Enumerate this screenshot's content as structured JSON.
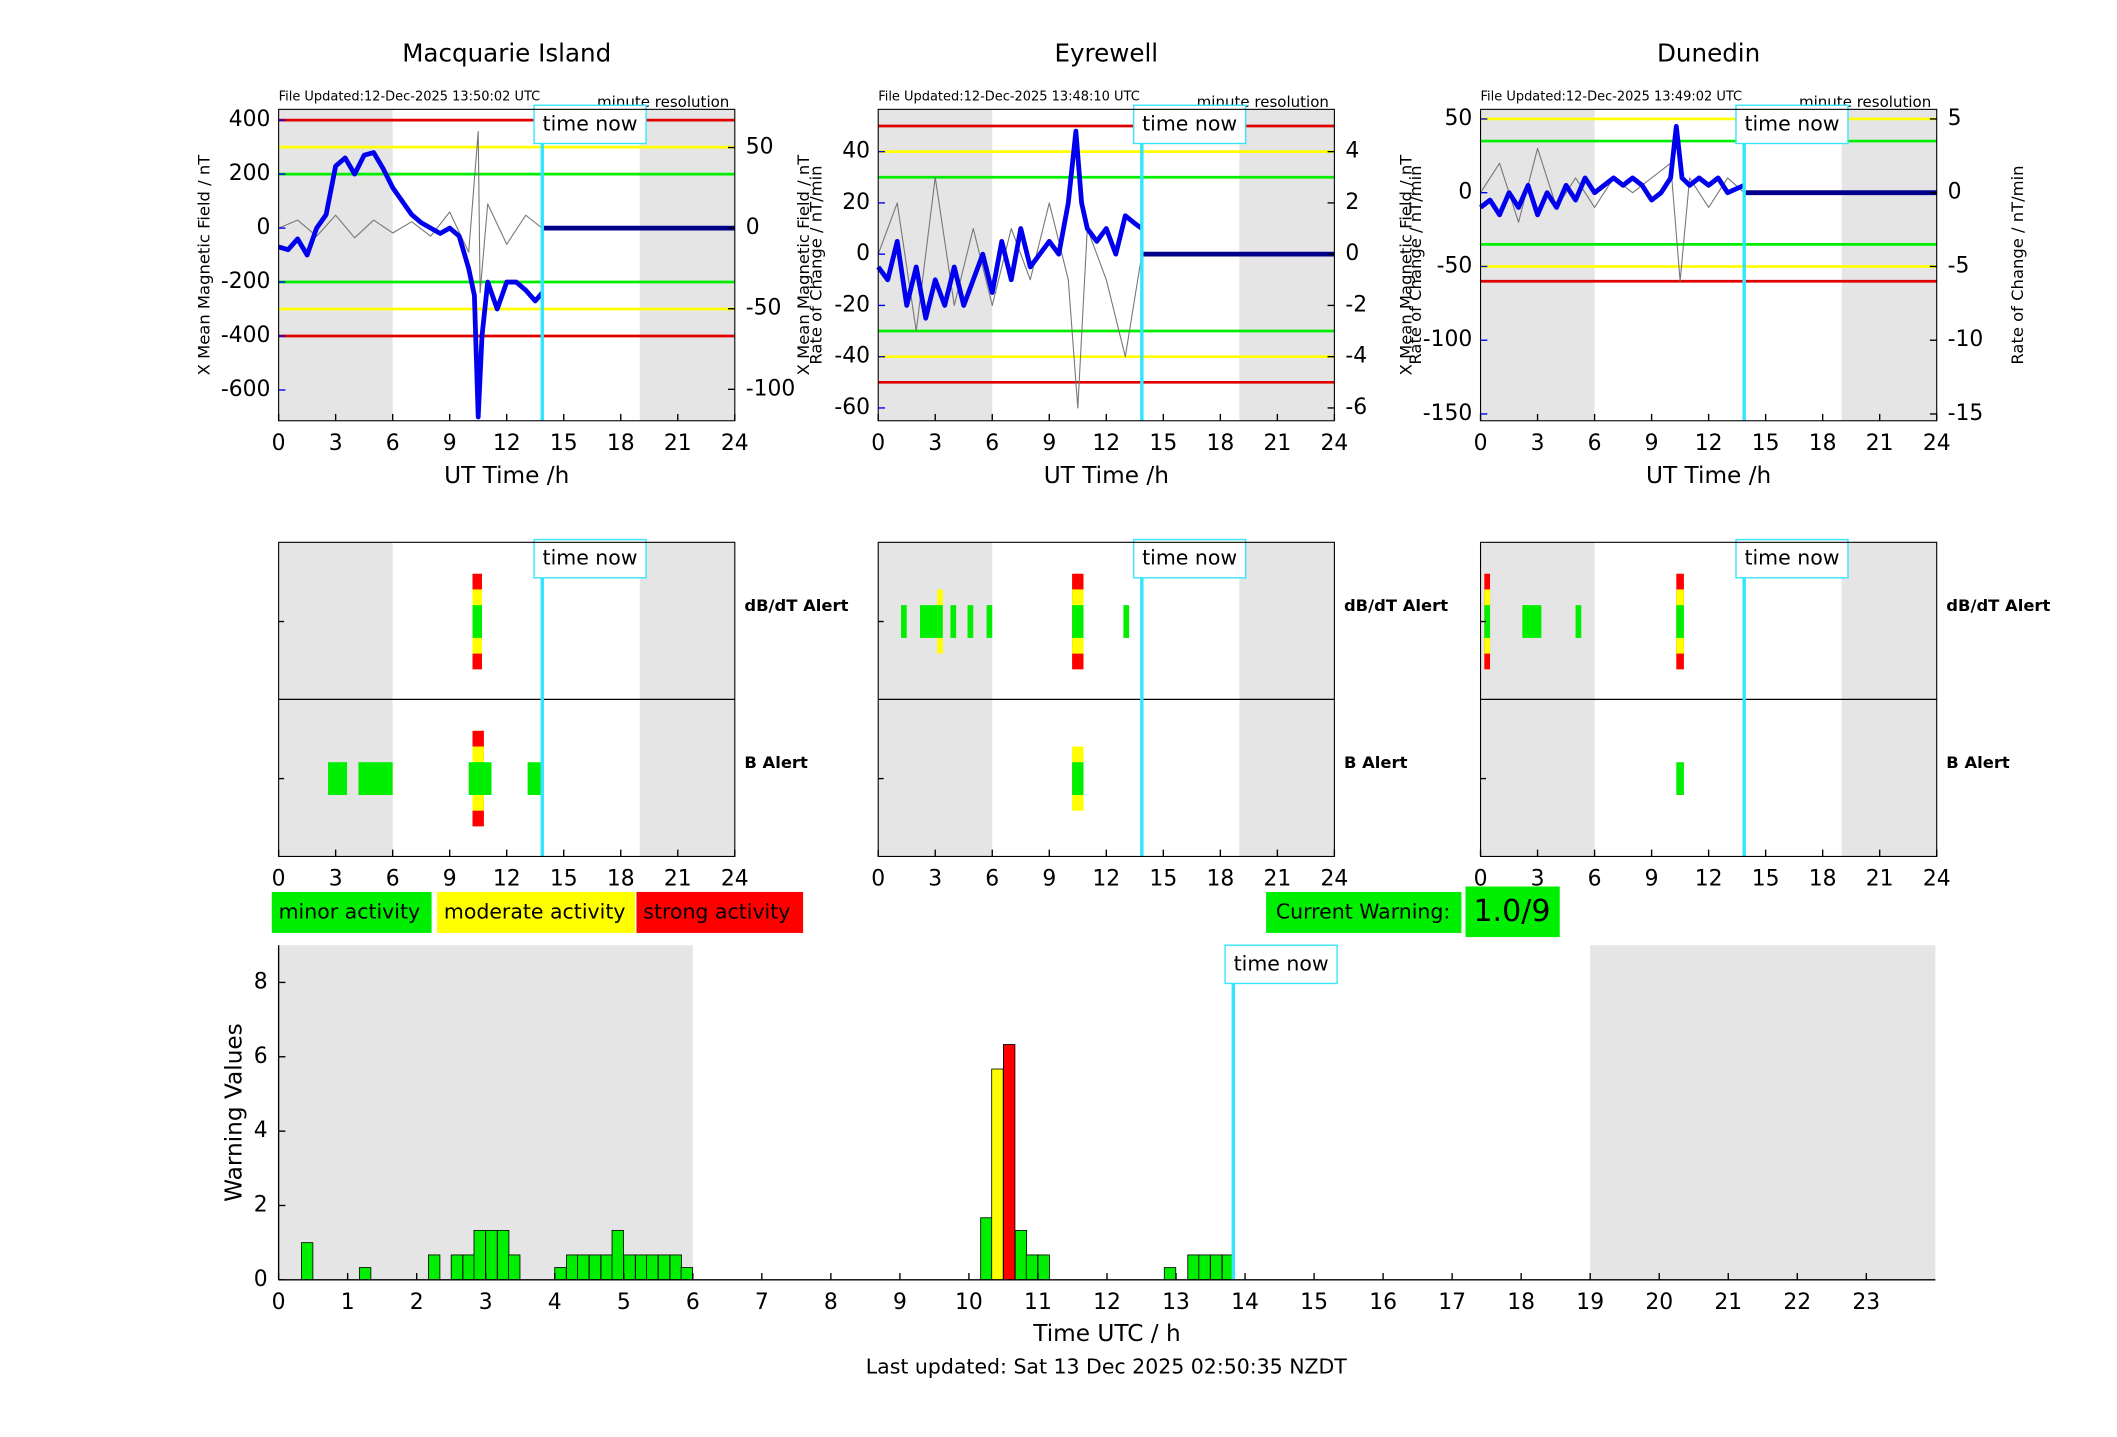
{
  "chart_data": [
    {
      "type": "line",
      "title": "Macquarie Island",
      "file_updated": "File Updated:12-Dec-2025 13:50:02 UTC",
      "resolution": "minute resolution",
      "xlabel": "UT Time /h",
      "ylabel": "X Mean Magnetic Field / nT",
      "y2label": "Rate of Change / nT/min",
      "xlim": [
        0,
        24
      ],
      "xticks": [
        0,
        3,
        6,
        9,
        12,
        15,
        18,
        21,
        24
      ],
      "ylim": [
        -714,
        440
      ],
      "yticks": [
        400,
        200,
        0,
        -200,
        -400,
        -600
      ],
      "y2lim": [
        -119.5,
        73.7
      ],
      "y2ticks": [
        50,
        0,
        -50,
        -100
      ],
      "shading": [
        [
          0,
          6
        ],
        [
          19,
          24
        ]
      ],
      "thresholds": [
        {
          "value": 400,
          "color": "#e00000"
        },
        {
          "value": 300,
          "color": "#ffff00"
        },
        {
          "value": 200,
          "color": "#00ee00"
        },
        {
          "value": -200,
          "color": "#00ee00"
        },
        {
          "value": -300,
          "color": "#ffff00"
        },
        {
          "value": -400,
          "color": "#e00000"
        }
      ],
      "time_now": {
        "x": 13.87,
        "label": "time now"
      },
      "series": [
        {
          "color": "#777777",
          "axis": "y2",
          "x": [
            0,
            1,
            2,
            3,
            4,
            5,
            6,
            7,
            8,
            9,
            10,
            10.5,
            10.6,
            11,
            12,
            13,
            13.87
          ],
          "values": [
            0,
            5,
            -5,
            8,
            -6,
            5,
            -3,
            4,
            -5,
            10,
            -15,
            60,
            -40,
            15,
            -10,
            8,
            0
          ]
        },
        {
          "color": "#0000ee",
          "axis": "y",
          "x": [
            0,
            0.5,
            1,
            1.5,
            2,
            2.5,
            3,
            3.5,
            4,
            4.5,
            5,
            5.5,
            6,
            6.5,
            7,
            7.5,
            8,
            8.5,
            9,
            9.5,
            10,
            10.3,
            10.5,
            10.7,
            11,
            11.5,
            12,
            12.5,
            13,
            13.5,
            13.87
          ],
          "values": [
            -70,
            -80,
            -40,
            -100,
            0,
            50,
            230,
            260,
            200,
            270,
            280,
            220,
            150,
            100,
            50,
            20,
            0,
            -20,
            0,
            -30,
            -150,
            -250,
            -700,
            -400,
            -200,
            -300,
            -200,
            -200,
            -230,
            -270,
            -240
          ]
        },
        {
          "color": "#00008b",
          "axis": "y",
          "x": [
            13.87,
            24
          ],
          "values": [
            0,
            0
          ]
        }
      ]
    },
    {
      "type": "line",
      "title": "Eyrewell",
      "file_updated": "File Updated:12-Dec-2025 13:48:10 UTC",
      "resolution": "minute resolution",
      "xlabel": "UT Time /h",
      "ylabel": "X Mean Magnetic Field / nT",
      "y2label": "Rate of Change / nT/min",
      "xlim": [
        0,
        24
      ],
      "xticks": [
        0,
        3,
        6,
        9,
        12,
        15,
        18,
        21,
        24
      ],
      "ylim": [
        -65,
        56.5
      ],
      "yticks": [
        40,
        20,
        0,
        -20,
        -40,
        -60
      ],
      "y2lim": [
        -6.5,
        5.65
      ],
      "y2ticks": [
        4,
        2,
        0,
        -2,
        -4,
        -6
      ],
      "shading": [
        [
          0,
          6
        ],
        [
          19,
          24
        ]
      ],
      "thresholds": [
        {
          "value": 50,
          "color": "#e00000"
        },
        {
          "value": 40,
          "color": "#ffff00"
        },
        {
          "value": 30,
          "color": "#00ee00"
        },
        {
          "value": -30,
          "color": "#00ee00"
        },
        {
          "value": -40,
          "color": "#ffff00"
        },
        {
          "value": -50,
          "color": "#e00000"
        }
      ],
      "time_now": {
        "x": 13.87,
        "label": "time now"
      },
      "series": [
        {
          "color": "#777777",
          "axis": "y2",
          "x": [
            0,
            1,
            2,
            3,
            4,
            5,
            6,
            7,
            8,
            9,
            10,
            10.5,
            11,
            12,
            13,
            13.87
          ],
          "values": [
            0,
            2,
            -3,
            3,
            -2,
            1,
            -2,
            1,
            -1,
            2,
            -1,
            -6,
            1,
            -1,
            -4,
            0
          ]
        },
        {
          "color": "#0000ee",
          "axis": "y",
          "x": [
            0,
            0.5,
            1,
            1.5,
            2,
            2.5,
            3,
            3.5,
            4,
            4.5,
            5,
            5.5,
            6,
            6.5,
            7,
            7.5,
            8,
            8.5,
            9,
            9.5,
            10,
            10.4,
            10.7,
            11,
            11.5,
            12,
            12.5,
            13,
            13.5,
            13.87
          ],
          "values": [
            -5,
            -10,
            5,
            -20,
            -5,
            -25,
            -10,
            -20,
            -5,
            -20,
            -10,
            0,
            -15,
            5,
            -10,
            10,
            -5,
            0,
            5,
            0,
            20,
            48,
            20,
            10,
            5,
            10,
            0,
            15,
            12,
            10
          ]
        },
        {
          "color": "#00008b",
          "axis": "y",
          "x": [
            13.87,
            24
          ],
          "values": [
            0,
            0
          ]
        }
      ]
    },
    {
      "type": "line",
      "title": "Dunedin",
      "file_updated": "File Updated:12-Dec-2025 13:49:02 UTC",
      "resolution": "minute resolution",
      "xlabel": "UT Time /h",
      "ylabel": "X Mean Magnetic Field / nT",
      "y2label": "Rate of Change / nT/min",
      "xlim": [
        0,
        24
      ],
      "xticks": [
        0,
        3,
        6,
        9,
        12,
        15,
        18,
        21,
        24
      ],
      "ylim": [
        -154.6,
        56.5
      ],
      "yticks": [
        50,
        0,
        -50,
        -100,
        -150
      ],
      "y2lim": [
        -15.46,
        5.65
      ],
      "y2ticks": [
        5,
        0,
        -5,
        -10,
        -15
      ],
      "shading": [
        [
          0,
          6
        ],
        [
          19,
          24
        ]
      ],
      "thresholds": [
        {
          "value": 50,
          "color": "#ffff00"
        },
        {
          "value": 35,
          "color": "#00ee00"
        },
        {
          "value": -35,
          "color": "#00ee00"
        },
        {
          "value": -50,
          "color": "#ffff00"
        },
        {
          "value": -60,
          "color": "#e00000"
        }
      ],
      "time_now": {
        "x": 13.87,
        "label": "time now"
      },
      "series": [
        {
          "color": "#777777",
          "axis": "y2",
          "x": [
            0,
            1,
            2,
            3,
            4,
            5,
            6,
            7,
            8,
            9,
            10,
            10.5,
            11,
            12,
            13,
            13.87
          ],
          "values": [
            0,
            2,
            -2,
            3,
            -1,
            1,
            -1,
            1,
            0,
            1,
            2,
            -6,
            1,
            -1,
            1,
            0
          ]
        },
        {
          "color": "#0000ee",
          "axis": "y",
          "x": [
            0,
            0.5,
            1,
            1.5,
            2,
            2.5,
            3,
            3.5,
            4,
            4.5,
            5,
            5.5,
            6,
            6.5,
            7,
            7.5,
            8,
            8.5,
            9,
            9.5,
            10,
            10.3,
            10.6,
            11,
            11.5,
            12,
            12.5,
            13,
            13.87
          ],
          "values": [
            -10,
            -5,
            -15,
            0,
            -10,
            5,
            -15,
            0,
            -10,
            5,
            -5,
            10,
            0,
            5,
            10,
            5,
            10,
            5,
            -5,
            0,
            10,
            45,
            10,
            5,
            10,
            5,
            10,
            0,
            5
          ]
        },
        {
          "color": "#00008b",
          "axis": "y",
          "x": [
            13.87,
            24
          ],
          "values": [
            0,
            0
          ]
        }
      ]
    },
    {
      "type": "alert",
      "xlim": [
        0,
        24
      ],
      "xticks": [
        0,
        3,
        6,
        9,
        12,
        15,
        18,
        21,
        24
      ],
      "shading": [
        [
          0,
          6
        ],
        [
          19,
          24
        ]
      ],
      "time_now": {
        "x": 13.87,
        "label": "time now"
      },
      "level_colors": [
        "#00ee00",
        "#ffff00",
        "#ff0000"
      ],
      "rows": [
        {
          "label": "dB/dT Alert",
          "color": "#000000",
          "blocks": [
            [
              10.2,
              10.7,
              3
            ]
          ]
        },
        {
          "label": "B Alert",
          "color": "#0000ff",
          "blocks": [
            [
              2.6,
              3.6,
              1
            ],
            [
              4.2,
              6,
              1
            ],
            [
              10.2,
              10.8,
              3
            ],
            [
              10,
              11.2,
              1
            ],
            [
              13.1,
              13.8,
              1
            ]
          ]
        }
      ]
    },
    {
      "type": "alert",
      "xlim": [
        0,
        24
      ],
      "xticks": [
        0,
        3,
        6,
        9,
        12,
        15,
        18,
        21,
        24
      ],
      "shading": [
        [
          0,
          6
        ],
        [
          19,
          24
        ]
      ],
      "time_now": {
        "x": 13.87,
        "label": "time now"
      },
      "level_colors": [
        "#00ee00",
        "#ffff00",
        "#ff0000"
      ],
      "rows": [
        {
          "label": "dB/dT Alert",
          "color": "#000000",
          "blocks": [
            [
              1.2,
              1.5,
              1
            ],
            [
              2.2,
              3.2,
              1
            ],
            [
              3.1,
              3.4,
              2
            ],
            [
              3.8,
              4.1,
              1
            ],
            [
              4.7,
              5,
              1
            ],
            [
              5.7,
              6,
              1
            ],
            [
              10.2,
              10.8,
              3
            ],
            [
              12.9,
              13.2,
              1
            ]
          ]
        },
        {
          "label": "B Alert",
          "color": "#0000ff",
          "blocks": [
            [
              10.2,
              10.8,
              2
            ]
          ]
        }
      ]
    },
    {
      "type": "alert",
      "xlim": [
        0,
        24
      ],
      "xticks": [
        0,
        3,
        6,
        9,
        12,
        15,
        18,
        21,
        24
      ],
      "shading": [
        [
          0,
          6
        ],
        [
          19,
          24
        ]
      ],
      "time_now": {
        "x": 13.87,
        "label": "time now"
      },
      "level_colors": [
        "#00ee00",
        "#ffff00",
        "#ff0000"
      ],
      "rows": [
        {
          "label": "dB/dT Alert",
          "color": "#000000",
          "blocks": [
            [
              0.2,
              0.5,
              3
            ],
            [
              2.2,
              3.2,
              1
            ],
            [
              5,
              5.3,
              1
            ],
            [
              10.3,
              10.7,
              3
            ]
          ]
        },
        {
          "label": "B Alert",
          "color": "#0000ff",
          "blocks": [
            [
              10.3,
              10.7,
              1
            ]
          ]
        }
      ]
    },
    {
      "type": "bar",
      "xlabel": "Time UTC / h",
      "ylabel": "Warning Values",
      "xlim": [
        0,
        24
      ],
      "xticks": [
        0,
        1,
        2,
        3,
        4,
        5,
        6,
        7,
        8,
        9,
        10,
        11,
        12,
        13,
        14,
        15,
        16,
        17,
        18,
        19,
        20,
        21,
        22,
        23
      ],
      "ylim": [
        0,
        9
      ],
      "yticks": [
        0,
        2,
        4,
        6,
        8
      ],
      "shading": [
        [
          0,
          6
        ],
        [
          19,
          24
        ]
      ],
      "time_now": {
        "x": 13.83,
        "label": "time now"
      },
      "x": [
        0.33,
        1.17,
        2.17,
        2.5,
        2.67,
        2.83,
        3,
        3.17,
        3.33,
        4,
        4.17,
        4.33,
        4.5,
        4.67,
        4.83,
        5,
        5.17,
        5.33,
        5.5,
        5.67,
        5.83,
        10.17,
        10.33,
        10.5,
        10.67,
        10.83,
        11,
        12.83,
        13.17,
        13.33,
        13.5,
        13.67
      ],
      "values": [
        1,
        0.33,
        0.67,
        0.67,
        0.67,
        1.33,
        1.33,
        1.33,
        0.67,
        0.33,
        0.67,
        0.67,
        0.67,
        0.67,
        1.33,
        0.67,
        0.67,
        0.67,
        0.67,
        0.67,
        0.33,
        1.67,
        5.67,
        6.33,
        1.33,
        0.67,
        0.67,
        0.33,
        0.67,
        0.67,
        0.67,
        0.67
      ],
      "colors": [
        "#00ee00",
        "#00ee00",
        "#00ee00",
        "#00ee00",
        "#00ee00",
        "#00ee00",
        "#00ee00",
        "#00ee00",
        "#00ee00",
        "#00ee00",
        "#00ee00",
        "#00ee00",
        "#00ee00",
        "#00ee00",
        "#00ee00",
        "#00ee00",
        "#00ee00",
        "#00ee00",
        "#00ee00",
        "#00ee00",
        "#00ee00",
        "#00ee00",
        "#ffff00",
        "#ff0000",
        "#00ee00",
        "#00ee00",
        "#00ee00",
        "#00ee00",
        "#00ee00",
        "#00ee00",
        "#00ee00",
        "#00ee00"
      ],
      "footer": "Last updated: Sat 13 Dec 2025 02:50:35 NZDT"
    }
  ],
  "activity_legend": [
    {
      "label": "minor activity",
      "color": "#00ee00"
    },
    {
      "label": "moderate activity",
      "color": "#ffff00"
    },
    {
      "label": "strong activity",
      "color": "#ff0000"
    }
  ],
  "current_warning": {
    "label": "Current Warning:",
    "value": "1.0/9"
  }
}
